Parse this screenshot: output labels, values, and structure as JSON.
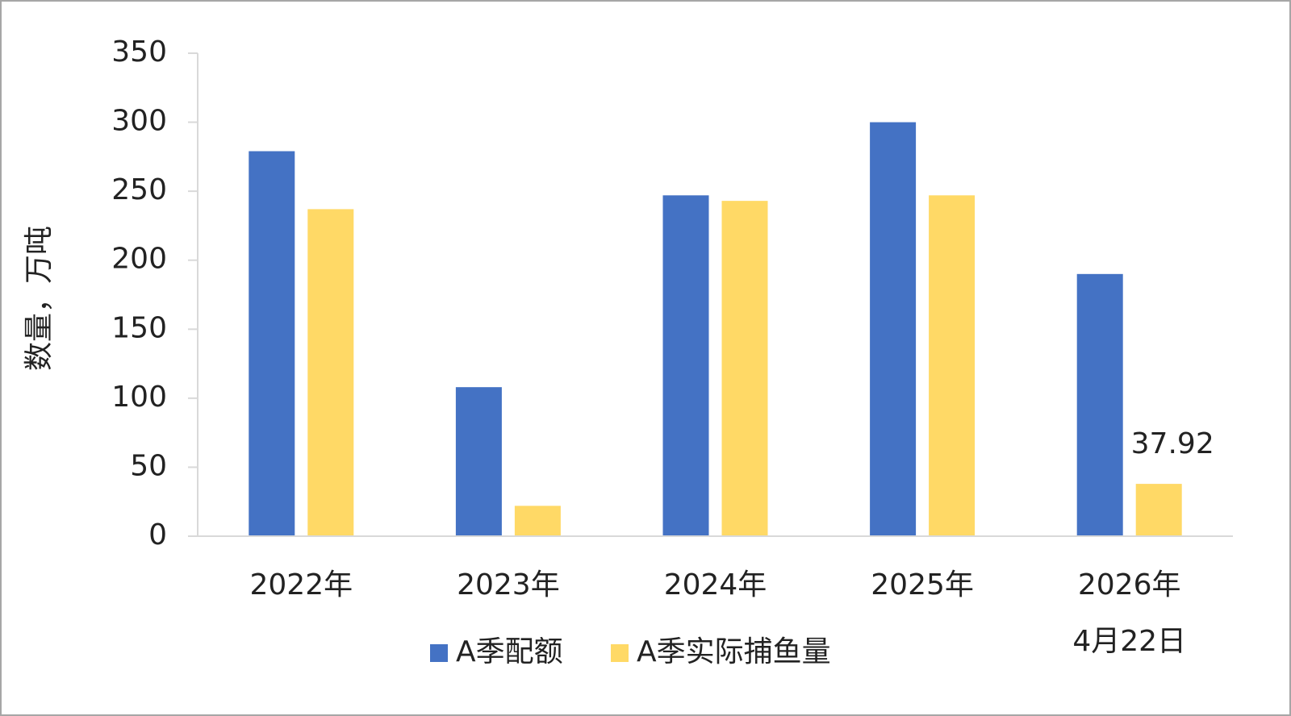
{
  "chart_data": {
    "type": "bar",
    "y_label": "数量，万吨",
    "categories": [
      "2022年",
      "2023年",
      "2024年",
      "2025年",
      "2026年\n4月22日"
    ],
    "series": [
      {
        "name": "A季配额",
        "color": "#4472c4",
        "values": [
          279,
          108,
          247,
          300,
          190
        ]
      },
      {
        "name": "A季实际捕鱼量",
        "color": "#ffd966",
        "values": [
          237,
          22,
          243,
          247,
          37.92
        ],
        "value_labels": [
          null,
          null,
          null,
          null,
          "37.92"
        ]
      }
    ],
    "ylim": [
      0,
      350
    ],
    "yticks": [
      0,
      50,
      100,
      150,
      200,
      250,
      300,
      350
    ],
    "grid": false
  }
}
